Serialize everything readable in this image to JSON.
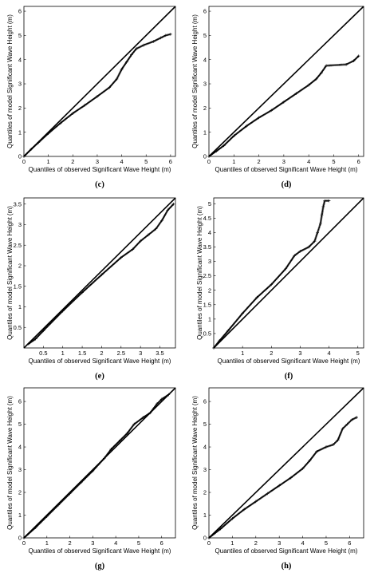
{
  "chart_data": [
    {
      "type": "scatter",
      "panel_label": "(c)",
      "xlabel": "Quantiles of observed Significant Wave Height  (m)",
      "ylabel": "Quantiles of model Significant Wave Height  (m)",
      "xlim": [
        0,
        6.2
      ],
      "ylim": [
        0,
        6.2
      ],
      "xticks": [
        "0",
        "1",
        "2",
        "3",
        "4",
        "5",
        "6"
      ],
      "yticks": [
        "0",
        "1",
        "2",
        "3",
        "4",
        "5",
        "6"
      ],
      "reference_line": [
        [
          0,
          0
        ],
        [
          6.2,
          6.2
        ]
      ],
      "points": [
        [
          0,
          0
        ],
        [
          0.3,
          0.3
        ],
        [
          0.6,
          0.58
        ],
        [
          1.0,
          0.95
        ],
        [
          1.5,
          1.38
        ],
        [
          2.0,
          1.78
        ],
        [
          2.5,
          2.12
        ],
        [
          3.0,
          2.48
        ],
        [
          3.5,
          2.85
        ],
        [
          3.8,
          3.2
        ],
        [
          4.0,
          3.6
        ],
        [
          4.2,
          3.9
        ],
        [
          4.4,
          4.2
        ],
        [
          4.6,
          4.45
        ],
        [
          4.9,
          4.6
        ],
        [
          5.3,
          4.75
        ],
        [
          5.6,
          4.9
        ],
        [
          5.8,
          5.0
        ],
        [
          6.0,
          5.05
        ]
      ]
    },
    {
      "type": "scatter",
      "panel_label": "(d)",
      "xlabel": "Quantiles of observed Significant Wave Height  (m)",
      "ylabel": "Quantiles of model Significant Wave Height  (m)",
      "xlim": [
        0,
        6.2
      ],
      "ylim": [
        0,
        6.2
      ],
      "xticks": [
        "0",
        "1",
        "2",
        "3",
        "4",
        "5",
        "6"
      ],
      "yticks": [
        "0",
        "1",
        "2",
        "3",
        "4",
        "5",
        "6"
      ],
      "reference_line": [
        [
          0,
          0
        ],
        [
          6.2,
          6.2
        ]
      ],
      "points": [
        [
          0,
          0
        ],
        [
          0.3,
          0.22
        ],
        [
          0.6,
          0.45
        ],
        [
          1.0,
          0.85
        ],
        [
          1.5,
          1.25
        ],
        [
          2.0,
          1.6
        ],
        [
          2.5,
          1.9
        ],
        [
          3.0,
          2.25
        ],
        [
          3.5,
          2.6
        ],
        [
          4.0,
          2.95
        ],
        [
          4.3,
          3.2
        ],
        [
          4.5,
          3.45
        ],
        [
          4.7,
          3.75
        ],
        [
          5.5,
          3.8
        ],
        [
          5.8,
          3.95
        ],
        [
          6.0,
          4.15
        ]
      ]
    },
    {
      "type": "scatter",
      "panel_label": "(e)",
      "xlabel": "Quantiles of observed Significant Wave Height  (m)",
      "ylabel": "Quantiles of model Significant Wave Height  (m)",
      "xlim": [
        0,
        3.9
      ],
      "ylim": [
        0,
        3.65
      ],
      "xticks": [
        "0.5",
        "1",
        "1.5",
        "2",
        "2.5",
        "3",
        "3.5"
      ],
      "yticks": [
        "0.5",
        "1",
        "1.5",
        "2",
        "2.5",
        "3",
        "3.5"
      ],
      "reference_line": [
        [
          0,
          0
        ],
        [
          3.9,
          3.65
        ]
      ],
      "points": [
        [
          0.12,
          0.1
        ],
        [
          0.3,
          0.22
        ],
        [
          0.5,
          0.42
        ],
        [
          1.0,
          0.9
        ],
        [
          1.5,
          1.35
        ],
        [
          2.0,
          1.78
        ],
        [
          2.5,
          2.2
        ],
        [
          2.8,
          2.4
        ],
        [
          3.0,
          2.6
        ],
        [
          3.2,
          2.75
        ],
        [
          3.4,
          2.9
        ],
        [
          3.55,
          3.1
        ],
        [
          3.7,
          3.35
        ],
        [
          3.85,
          3.5
        ]
      ]
    },
    {
      "type": "scatter",
      "panel_label": "(f)",
      "xlabel": "Quantiles of observed Significant Wave Height  (m)",
      "ylabel": "Quantiles of model Significant Wave Height  (m)",
      "xlim": [
        0,
        5.2
      ],
      "ylim": [
        0,
        5.2
      ],
      "xticks": [
        "1",
        "2",
        "3",
        "4",
        "5"
      ],
      "yticks": [
        "0.5",
        "1",
        "1.5",
        "2",
        "2.5",
        "3",
        "3.5",
        "4",
        "4.5",
        "5"
      ],
      "reference_line": [
        [
          0,
          0
        ],
        [
          5.2,
          5.2
        ]
      ],
      "points": [
        [
          0,
          0
        ],
        [
          0.2,
          0.25
        ],
        [
          0.5,
          0.6
        ],
        [
          1.0,
          1.2
        ],
        [
          1.5,
          1.75
        ],
        [
          2.0,
          2.2
        ],
        [
          2.5,
          2.75
        ],
        [
          2.8,
          3.2
        ],
        [
          3.0,
          3.35
        ],
        [
          3.3,
          3.5
        ],
        [
          3.5,
          3.7
        ],
        [
          3.6,
          4.0
        ],
        [
          3.7,
          4.3
        ],
        [
          3.75,
          4.6
        ],
        [
          3.8,
          4.9
        ],
        [
          3.85,
          5.1
        ],
        [
          4.0,
          5.1
        ]
      ]
    },
    {
      "type": "scatter",
      "panel_label": "(g)",
      "xlabel": "Quantiles of observed Significant Wave Height  (m)",
      "ylabel": "Quantiles of model Significant Wave Height  (m)",
      "xlim": [
        0,
        6.6
      ],
      "ylim": [
        0,
        6.6
      ],
      "xticks": [
        "0",
        "1",
        "2",
        "3",
        "4",
        "5",
        "6"
      ],
      "yticks": [
        "0",
        "1",
        "2",
        "3",
        "4",
        "5",
        "6"
      ],
      "reference_line": [
        [
          0,
          0
        ],
        [
          6.6,
          6.6
        ]
      ],
      "points": [
        [
          0,
          0
        ],
        [
          0.5,
          0.45
        ],
        [
          1.0,
          0.95
        ],
        [
          1.5,
          1.45
        ],
        [
          2.0,
          1.95
        ],
        [
          2.5,
          2.45
        ],
        [
          3.0,
          2.95
        ],
        [
          3.5,
          3.5
        ],
        [
          3.8,
          3.9
        ],
        [
          4.2,
          4.3
        ],
        [
          4.5,
          4.6
        ],
        [
          4.8,
          5.0
        ],
        [
          5.2,
          5.3
        ],
        [
          5.5,
          5.5
        ],
        [
          5.8,
          5.9
        ],
        [
          6.0,
          6.1
        ],
        [
          6.3,
          6.3
        ]
      ]
    },
    {
      "type": "scatter",
      "panel_label": "(h)",
      "xlabel": "Quantiles of observed Significant Wave Height  (m)",
      "ylabel": "Quantiles of model Significant Wave Height  (m)",
      "xlim": [
        0,
        6.6
      ],
      "ylim": [
        0,
        6.6
      ],
      "xticks": [
        "0",
        "1",
        "2",
        "3",
        "4",
        "5",
        "6"
      ],
      "yticks": [
        "0",
        "1",
        "2",
        "3",
        "4",
        "5",
        "6"
      ],
      "reference_line": [
        [
          0,
          0
        ],
        [
          6.6,
          6.6
        ]
      ],
      "points": [
        [
          0,
          0
        ],
        [
          0.5,
          0.4
        ],
        [
          1.0,
          0.85
        ],
        [
          1.5,
          1.25
        ],
        [
          2.0,
          1.6
        ],
        [
          2.5,
          1.95
        ],
        [
          3.0,
          2.3
        ],
        [
          3.5,
          2.65
        ],
        [
          4.0,
          3.05
        ],
        [
          4.3,
          3.4
        ],
        [
          4.6,
          3.8
        ],
        [
          5.0,
          4.0
        ],
        [
          5.3,
          4.1
        ],
        [
          5.5,
          4.3
        ],
        [
          5.7,
          4.8
        ],
        [
          5.9,
          5.0
        ],
        [
          6.1,
          5.2
        ],
        [
          6.3,
          5.3
        ]
      ]
    }
  ]
}
